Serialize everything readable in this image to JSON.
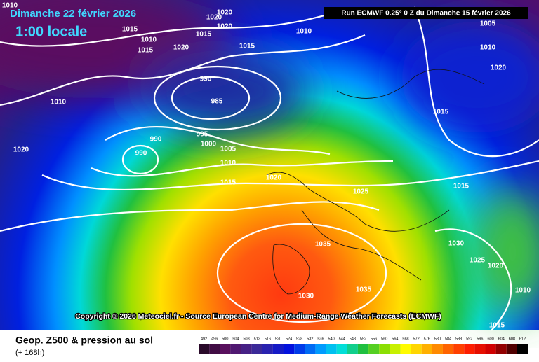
{
  "header": {
    "date": "Dimanche 22 février 2026",
    "time": "1:00 locale",
    "run": "Run ECMWF 0.25° 0 Z du Dimanche 15 février 2026"
  },
  "isobar_labels": [
    1010,
    1015,
    1020,
    1020,
    1020,
    1015,
    1010,
    1015,
    1020,
    1015,
    1010,
    1005,
    1010,
    1020,
    990,
    985,
    1010,
    1015,
    995,
    990,
    990,
    1000,
    1005,
    1010,
    1015,
    1020,
    1025,
    1015,
    1020,
    1035,
    1030,
    1025,
    1020,
    1030,
    1035,
    1015,
    1010
  ],
  "copyright": "Copyright © 2026 Meteociel.fr - Source European Centre for Medium-Range Weather Forecasts (ECMWF)",
  "footer": {
    "title": "Geop. Z500 & pression au sol",
    "lead": "(+ 168h)"
  },
  "scale": {
    "labels": [
      492,
      496,
      500,
      504,
      508,
      512,
      516,
      520,
      524,
      528,
      532,
      536,
      540,
      544,
      548,
      552,
      556,
      560,
      564,
      568,
      572,
      576,
      580,
      584,
      588,
      592,
      596,
      600,
      604,
      608,
      612
    ]
  }
}
